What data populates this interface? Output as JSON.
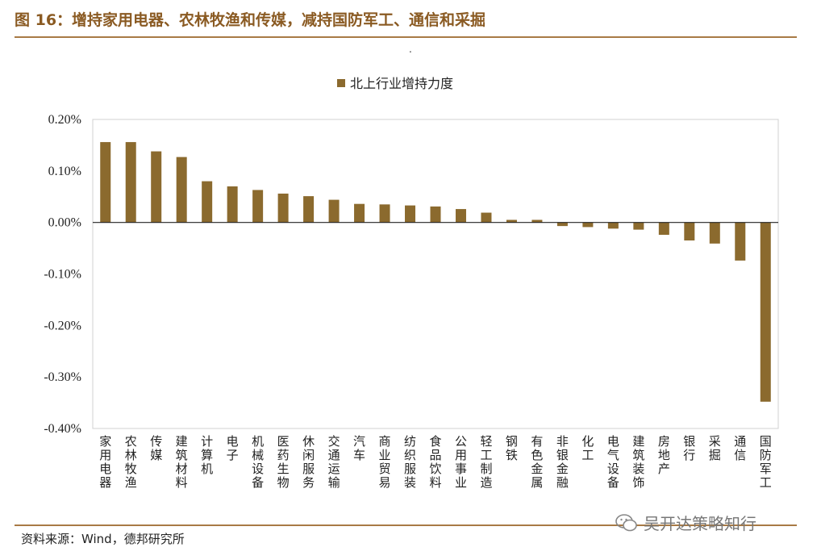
{
  "figure": {
    "title": "图 16：增持家用电器、农林牧渔和传媒，减持国防军工、通信和采掘",
    "dot": ".",
    "source": "资料来源：Wind，德邦研究所",
    "watermark": "吴开达策略知行",
    "watermark_icon": "wechat-icon"
  },
  "chart_data": {
    "type": "bar",
    "series": [
      {
        "name": "北上行业增持力度",
        "color": "#8b6a2e",
        "values": [
          0.156,
          0.156,
          0.138,
          0.127,
          0.08,
          0.07,
          0.063,
          0.056,
          0.051,
          0.044,
          0.036,
          0.035,
          0.033,
          0.031,
          0.026,
          0.019,
          0.005,
          0.005,
          -0.007,
          -0.009,
          -0.012,
          -0.014,
          -0.024,
          -0.035,
          -0.041,
          -0.074,
          -0.348
        ]
      }
    ],
    "categories": [
      "家用电器",
      "农林牧渔",
      "传媒",
      "建筑材料",
      "计算机",
      "电子",
      "机械设备",
      "医药生物",
      "休闲服务",
      "交通运输",
      "汽车",
      "商业贸易",
      "纺织服装",
      "食品饮料",
      "公用事业",
      "轻工制造",
      "钢铁",
      "有色金属",
      "非银金融",
      "化工",
      "电气设备",
      "建筑装饰",
      "房地产",
      "银行",
      "采掘",
      "通信",
      "国防军工"
    ],
    "ylim": [
      -0.4,
      0.2
    ],
    "yticks": [
      0.2,
      0.1,
      0.0,
      -0.1,
      -0.2,
      -0.3,
      -0.4
    ],
    "ytick_labels": [
      "0.20%",
      "0.10%",
      "0.00%",
      "-0.10%",
      "-0.20%",
      "-0.30%",
      "-0.40%"
    ],
    "legend_position": "top-center",
    "grid": false
  }
}
